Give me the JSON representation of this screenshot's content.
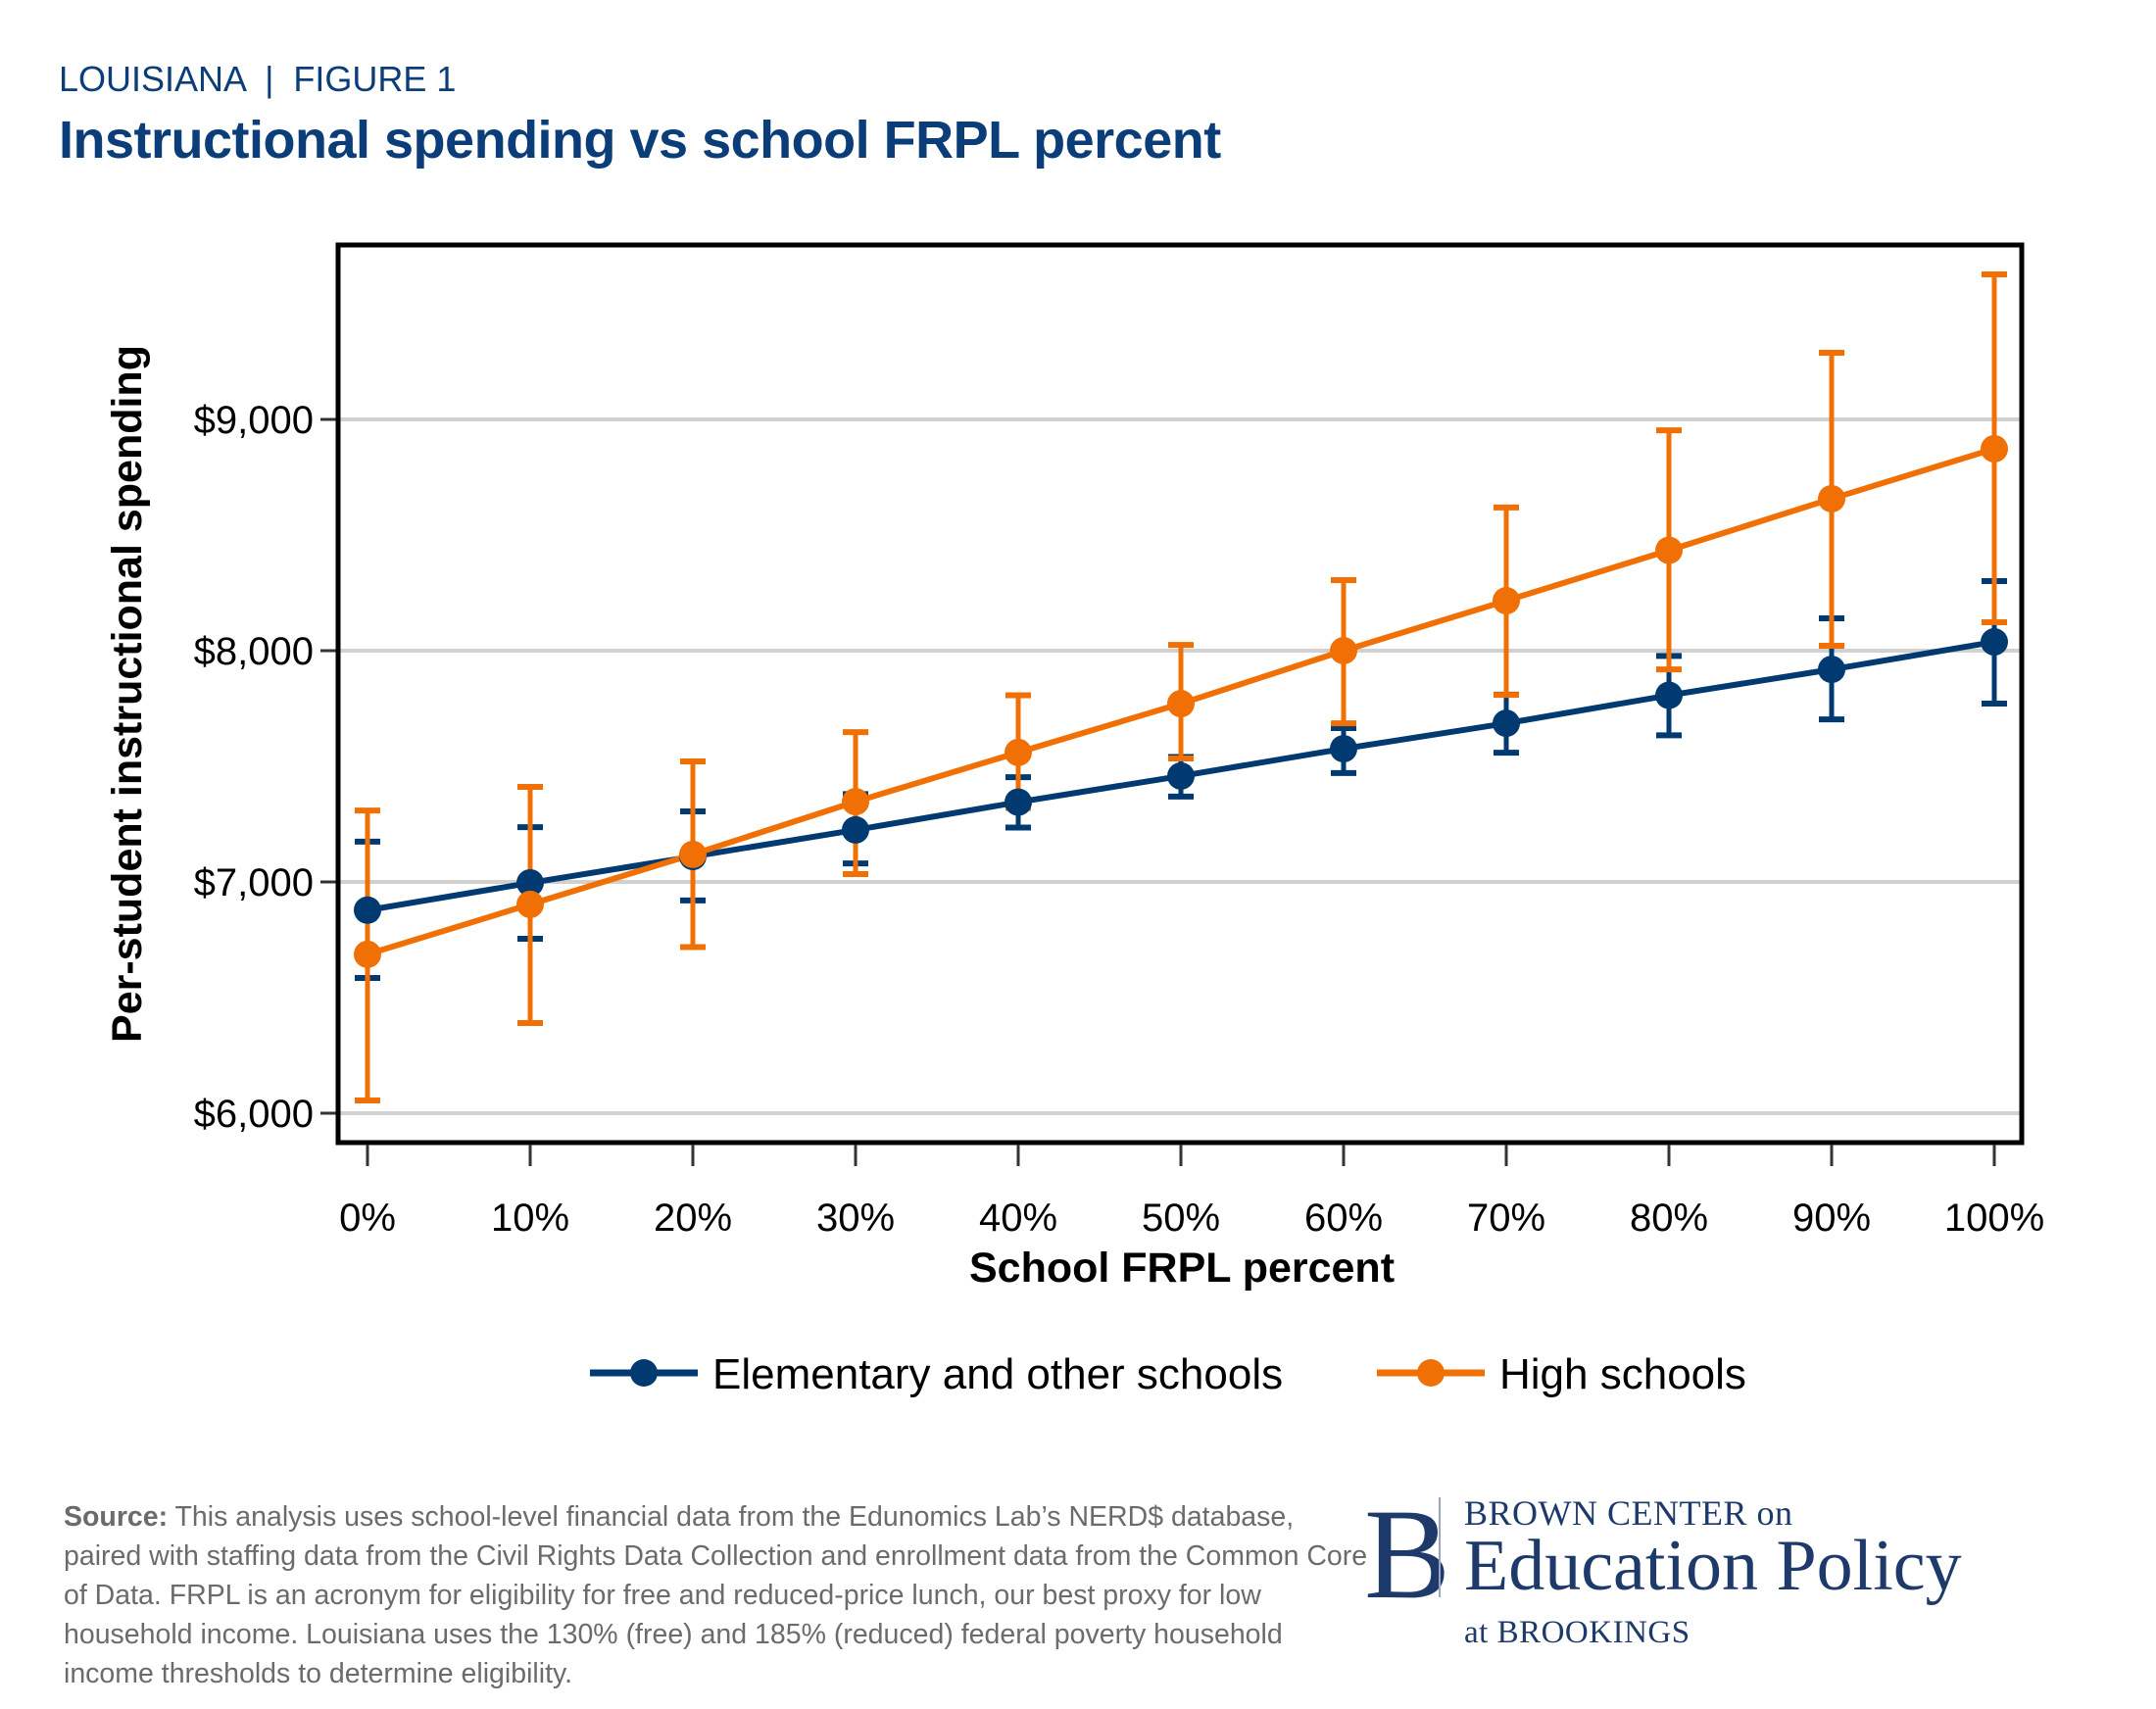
{
  "header": {
    "kicker": "LOUISIANA  |  FIGURE 1",
    "title": "Instructional spending vs school FRPL percent"
  },
  "colors": {
    "title": "#0b3d78",
    "elementary": "#003a70",
    "high": "#f07005",
    "gridline": "#d0d0d0",
    "source_text": "#6b6b6b",
    "logo": "#1d3a6b"
  },
  "chart_data": {
    "type": "line",
    "title": "Instructional spending vs school FRPL percent",
    "xlabel": "School FRPL percent",
    "ylabel": "Per-student instructional spending",
    "x": [
      0,
      10,
      20,
      30,
      40,
      50,
      60,
      70,
      80,
      90,
      100
    ],
    "x_tick_labels": [
      "0%",
      "10%",
      "20%",
      "30%",
      "40%",
      "50%",
      "60%",
      "70%",
      "80%",
      "90%",
      "100%"
    ],
    "y_ticks": [
      6000,
      7000,
      8000,
      9000
    ],
    "y_tick_labels": [
      "$6,000",
      "$7,000",
      "$8,000",
      "$9,000"
    ],
    "xlim": [
      -2.5,
      102
    ],
    "ylim": [
      5870,
      9750
    ],
    "grid": "horizontal",
    "legend_position": "bottom-center",
    "error_bars": true,
    "series": [
      {
        "name": "Elementary and other schools",
        "color": "#003a70",
        "values": [
          6878,
          6996,
          7110,
          7225,
          7345,
          7458,
          7576,
          7686,
          7807,
          7919,
          8038
        ],
        "ci_low": [
          6585,
          6754,
          6920,
          7080,
          7235,
          7369,
          7471,
          7559,
          7634,
          7703,
          7771
        ],
        "ci_high": [
          7174,
          7237,
          7305,
          7380,
          7453,
          7540,
          7665,
          7810,
          7977,
          8140,
          8301
        ]
      },
      {
        "name": "High schools",
        "color": "#f07005",
        "values": [
          6687,
          6903,
          7119,
          7347,
          7560,
          7771,
          8000,
          8216,
          8434,
          8657,
          8873
        ],
        "ci_low": [
          6055,
          6390,
          6718,
          7034,
          7320,
          7534,
          7686,
          7809,
          7919,
          8021,
          8123
        ],
        "ci_high": [
          7309,
          7411,
          7521,
          7648,
          7807,
          8025,
          8305,
          8619,
          8953,
          9288,
          9627
        ]
      }
    ]
  },
  "legend": {
    "items": [
      {
        "label": "Elementary and other schools"
      },
      {
        "label": "High schools"
      }
    ]
  },
  "footer": {
    "source_label": "Source:",
    "source_text": " This analysis uses school-level financial data from the Edunomics Lab’s NERD$ database, paired with staffing data from the Civil Rights Data Collection and enrollment data from the Common Core of Data. FRPL is an acronym for eligibility for free and reduced-price lunch, our best proxy for low household income. Louisiana uses the 130% (free) and 185% (reduced) federal poverty household income thresholds to determine eligibility.",
    "logo": {
      "letter": "B",
      "line1": "BROWN CENTER on",
      "line2": "Education Policy",
      "line3": "at BROOKINGS"
    }
  }
}
